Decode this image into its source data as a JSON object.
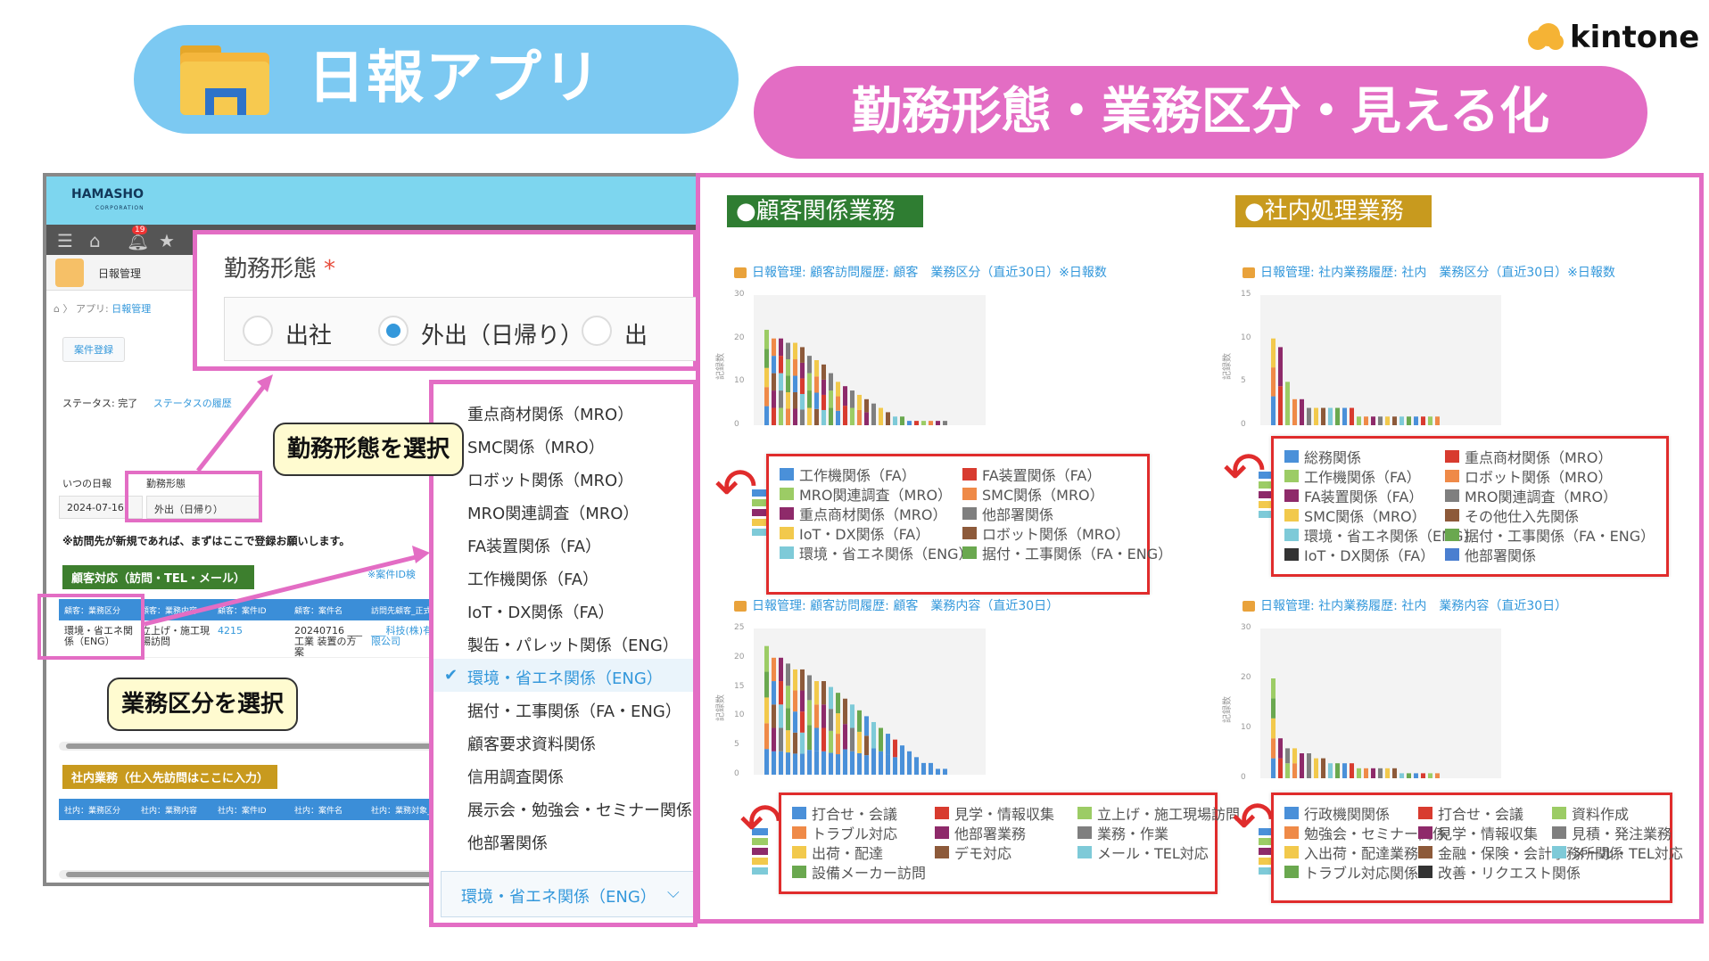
{
  "header": {
    "app_title": "日報アプリ",
    "feature_title": "勤務形態・業務区分・見える化",
    "brand": "kintone"
  },
  "kintone_app": {
    "company": "HAMASHO",
    "company_sub": "CORPORATION",
    "notification_count": "19",
    "app_name": "日報管理",
    "breadcrumb_prefix": "アプリ:",
    "breadcrumb_link": "日報管理",
    "case_button": "案件登録",
    "status_label": "ステータス: 完了",
    "status_history": "ステータスの履歴",
    "date_label": "いつの日報",
    "date_value": "2024-07-16",
    "form_label": "勤務形態",
    "form_value": "外出（日帰り）",
    "notice": "※訪問先が新規であれば、まずはここで登録お願いします。",
    "customer_section": "顧客対応（訪問・TEL・メール）",
    "small_link": "※案件ID検",
    "customer_headers": [
      "顧客：業務区分",
      "顧客：業務内容",
      "顧客：案件ID",
      "顧客：案件名",
      "訪問先顧客_正式"
    ],
    "customer_row": [
      "環境・省エネ関係（ENG）",
      "立上げ・施工現場訪問",
      "4215",
      "20240716 ___工業 装置の方案",
      "___科技(株)有限公司"
    ],
    "internal_section": "社内業務（仕入先訪問はここに入力）",
    "internal_headers": [
      "社内：業務区分",
      "社内：業務内容",
      "社内：案件ID",
      "社内：案件名",
      "社内：業務対象_仕入"
    ]
  },
  "form_overlay": {
    "label": "勤務形態",
    "required_mark": "*",
    "options": [
      "出社",
      "外出（日帰り）",
      "出"
    ],
    "selected_index": 1
  },
  "dropdown": {
    "items": [
      "重点商材関係（MRO）",
      "SMC関係（MRO）",
      "ロボット関係（MRO）",
      "MRO関連調査（MRO）",
      "FA装置関係（FA）",
      "工作機関係（FA）",
      "IoT・DX関係（FA）",
      "製缶・パレット関係（ENG）",
      "環境・省エネ関係（ENG）",
      "据付・工事関係（FA・ENG）",
      "顧客要求資料関係",
      "信用調査関係",
      "展示会・勉強会・セミナー関係",
      "他部署関係"
    ],
    "selected_index": 8,
    "selected_value": "環境・省エネ関係（ENG）"
  },
  "callouts": {
    "form": "勤務形態を選択",
    "category": "業務区分を選択"
  },
  "charts": {
    "section_customer": "●顧客関係業務",
    "section_internal": "●社内処理業務",
    "y_axis_label": "記録数",
    "c1": {
      "title": "日報管理: 顧客訪問履歴: 顧客　業務区分（直近30日）※日報数",
      "yticks": [
        "30",
        "20",
        "10",
        "0"
      ],
      "legend": [
        {
          "label": "工作機関係（FA）",
          "color": "#4a90d9"
        },
        {
          "label": "FA装置関係（FA）",
          "color": "#d83b2f"
        },
        {
          "label": "MRO関連調査（MRO）",
          "color": "#9ccc65"
        },
        {
          "label": "SMC関係（MRO）",
          "color": "#ef8a48"
        },
        {
          "label": "重点商材関係（MRO）",
          "color": "#8e2a6a"
        },
        {
          "label": "他部署関係",
          "color": "#7f7f7f"
        },
        {
          "label": "IoT・DX関係（FA）",
          "color": "#f2c94c"
        },
        {
          "label": "ロボット関係（MRO）",
          "color": "#8d5a3a"
        },
        {
          "label": "環境・省エネ関係（ENG）",
          "color": "#7ecad8"
        },
        {
          "label": "据付・工事関係（FA・ENG）",
          "color": "#6aa84f"
        }
      ]
    },
    "c2": {
      "title": "日報管理: 社内業務履歴: 社内　業務区分（直近30日）※日報数",
      "yticks": [
        "15",
        "10",
        "5",
        "0"
      ],
      "legend": [
        {
          "label": "総務関係",
          "color": "#4a90d9"
        },
        {
          "label": "重点商材関係（MRO）",
          "color": "#d83b2f"
        },
        {
          "label": "工作機関係（FA）",
          "color": "#9ccc65"
        },
        {
          "label": "ロボット関係（MRO）",
          "color": "#ef8a48"
        },
        {
          "label": "FA装置関係（FA）",
          "color": "#8e2a6a"
        },
        {
          "label": "MRO関連調査（MRO）",
          "color": "#7f7f7f"
        },
        {
          "label": "SMC関係（MRO）",
          "color": "#f2c94c"
        },
        {
          "label": "その他仕入先関係",
          "color": "#8d5a3a"
        },
        {
          "label": "環境・省エネ関係（ENG）",
          "color": "#7ecad8"
        },
        {
          "label": "据付・工事関係（FA・ENG）",
          "color": "#6aa84f"
        },
        {
          "label": "IoT・DX関係（FA）",
          "color": "#333333"
        },
        {
          "label": "他部署関係",
          "color": "#4a7fd0"
        }
      ]
    },
    "c3": {
      "title": "日報管理: 顧客訪問履歴: 顧客　業務内容（直近30日）",
      "yticks": [
        "25",
        "20",
        "15",
        "10",
        "5",
        "0"
      ],
      "legend": [
        {
          "label": "打合せ・会議",
          "color": "#4a90d9"
        },
        {
          "label": "見学・情報収集",
          "color": "#d83b2f"
        },
        {
          "label": "立上げ・施工現場訪問",
          "color": "#9ccc65"
        },
        {
          "label": "トラブル対応",
          "color": "#ef8a48"
        },
        {
          "label": "他部署業務",
          "color": "#8e2a6a"
        },
        {
          "label": "業務・作業",
          "color": "#7f7f7f"
        },
        {
          "label": "出荷・配達",
          "color": "#f2c94c"
        },
        {
          "label": "デモ対応",
          "color": "#8d5a3a"
        },
        {
          "label": "メール・TEL対応",
          "color": "#7ecad8"
        },
        {
          "label": "設備メーカー訪問",
          "color": "#6aa84f"
        }
      ]
    },
    "c4": {
      "title": "日報管理: 社内業務履歴: 社内　業務内容（直近30日）",
      "yticks": [
        "30",
        "20",
        "10",
        "0"
      ],
      "legend": [
        {
          "label": "行政機関関係",
          "color": "#4a90d9"
        },
        {
          "label": "打合せ・会議",
          "color": "#d83b2f"
        },
        {
          "label": "資料作成",
          "color": "#9ccc65"
        },
        {
          "label": "勉強会・セミナー関係",
          "color": "#ef8a48"
        },
        {
          "label": "見学・情報収集",
          "color": "#8e2a6a"
        },
        {
          "label": "見積・発注業務",
          "color": "#7f7f7f"
        },
        {
          "label": "入出荷・配達業務",
          "color": "#f2c94c"
        },
        {
          "label": "金融・保険・会計事務所関係",
          "color": "#8d5a3a"
        },
        {
          "label": "メール・TEL対応",
          "color": "#7ecad8"
        },
        {
          "label": "トラブル対応関係",
          "color": "#6aa84f"
        },
        {
          "label": "改善・リクエスト関係",
          "color": "#333333"
        }
      ]
    }
  },
  "chart_data": [
    {
      "type": "bar",
      "title": "日報管理: 顧客訪問履歴: 顧客　業務区分（直近30日）※日報数",
      "ylabel": "記録数",
      "ylim": [
        0,
        30
      ],
      "values": [
        22,
        20,
        20,
        19,
        19,
        18,
        16,
        15,
        14,
        12,
        10,
        9,
        8,
        7,
        6,
        5,
        4,
        3,
        2,
        2,
        1,
        1,
        1,
        1,
        1,
        1
      ]
    },
    {
      "type": "bar",
      "title": "日報管理: 社内業務履歴: 社内　業務区分（直近30日）※日報数",
      "ylabel": "記録数",
      "ylim": [
        0,
        15
      ],
      "values": [
        10,
        9,
        5,
        3,
        3,
        2,
        2,
        2,
        2,
        2,
        2,
        2,
        1,
        1,
        1,
        1,
        1,
        1,
        1,
        1,
        1,
        1,
        1,
        1
      ]
    },
    {
      "type": "bar",
      "title": "日報管理: 顧客訪問履歴: 顧客　業務内容（直近30日）",
      "ylabel": "記録数",
      "ylim": [
        0,
        25
      ],
      "values": [
        22,
        20,
        20,
        19,
        18,
        18,
        17,
        16,
        16,
        15,
        14,
        13,
        12,
        11,
        10,
        9,
        8,
        7,
        6,
        5,
        4,
        3,
        2,
        2,
        1,
        1
      ]
    },
    {
      "type": "bar",
      "title": "日報管理: 社内業務履歴: 社内　業務内容（直近30日）",
      "ylabel": "記録数",
      "ylim": [
        0,
        30
      ],
      "values": [
        20,
        8,
        6,
        6,
        5,
        5,
        4,
        4,
        3,
        3,
        3,
        3,
        2,
        2,
        2,
        2,
        2,
        2,
        1,
        1,
        1,
        1,
        1,
        1
      ]
    }
  ]
}
